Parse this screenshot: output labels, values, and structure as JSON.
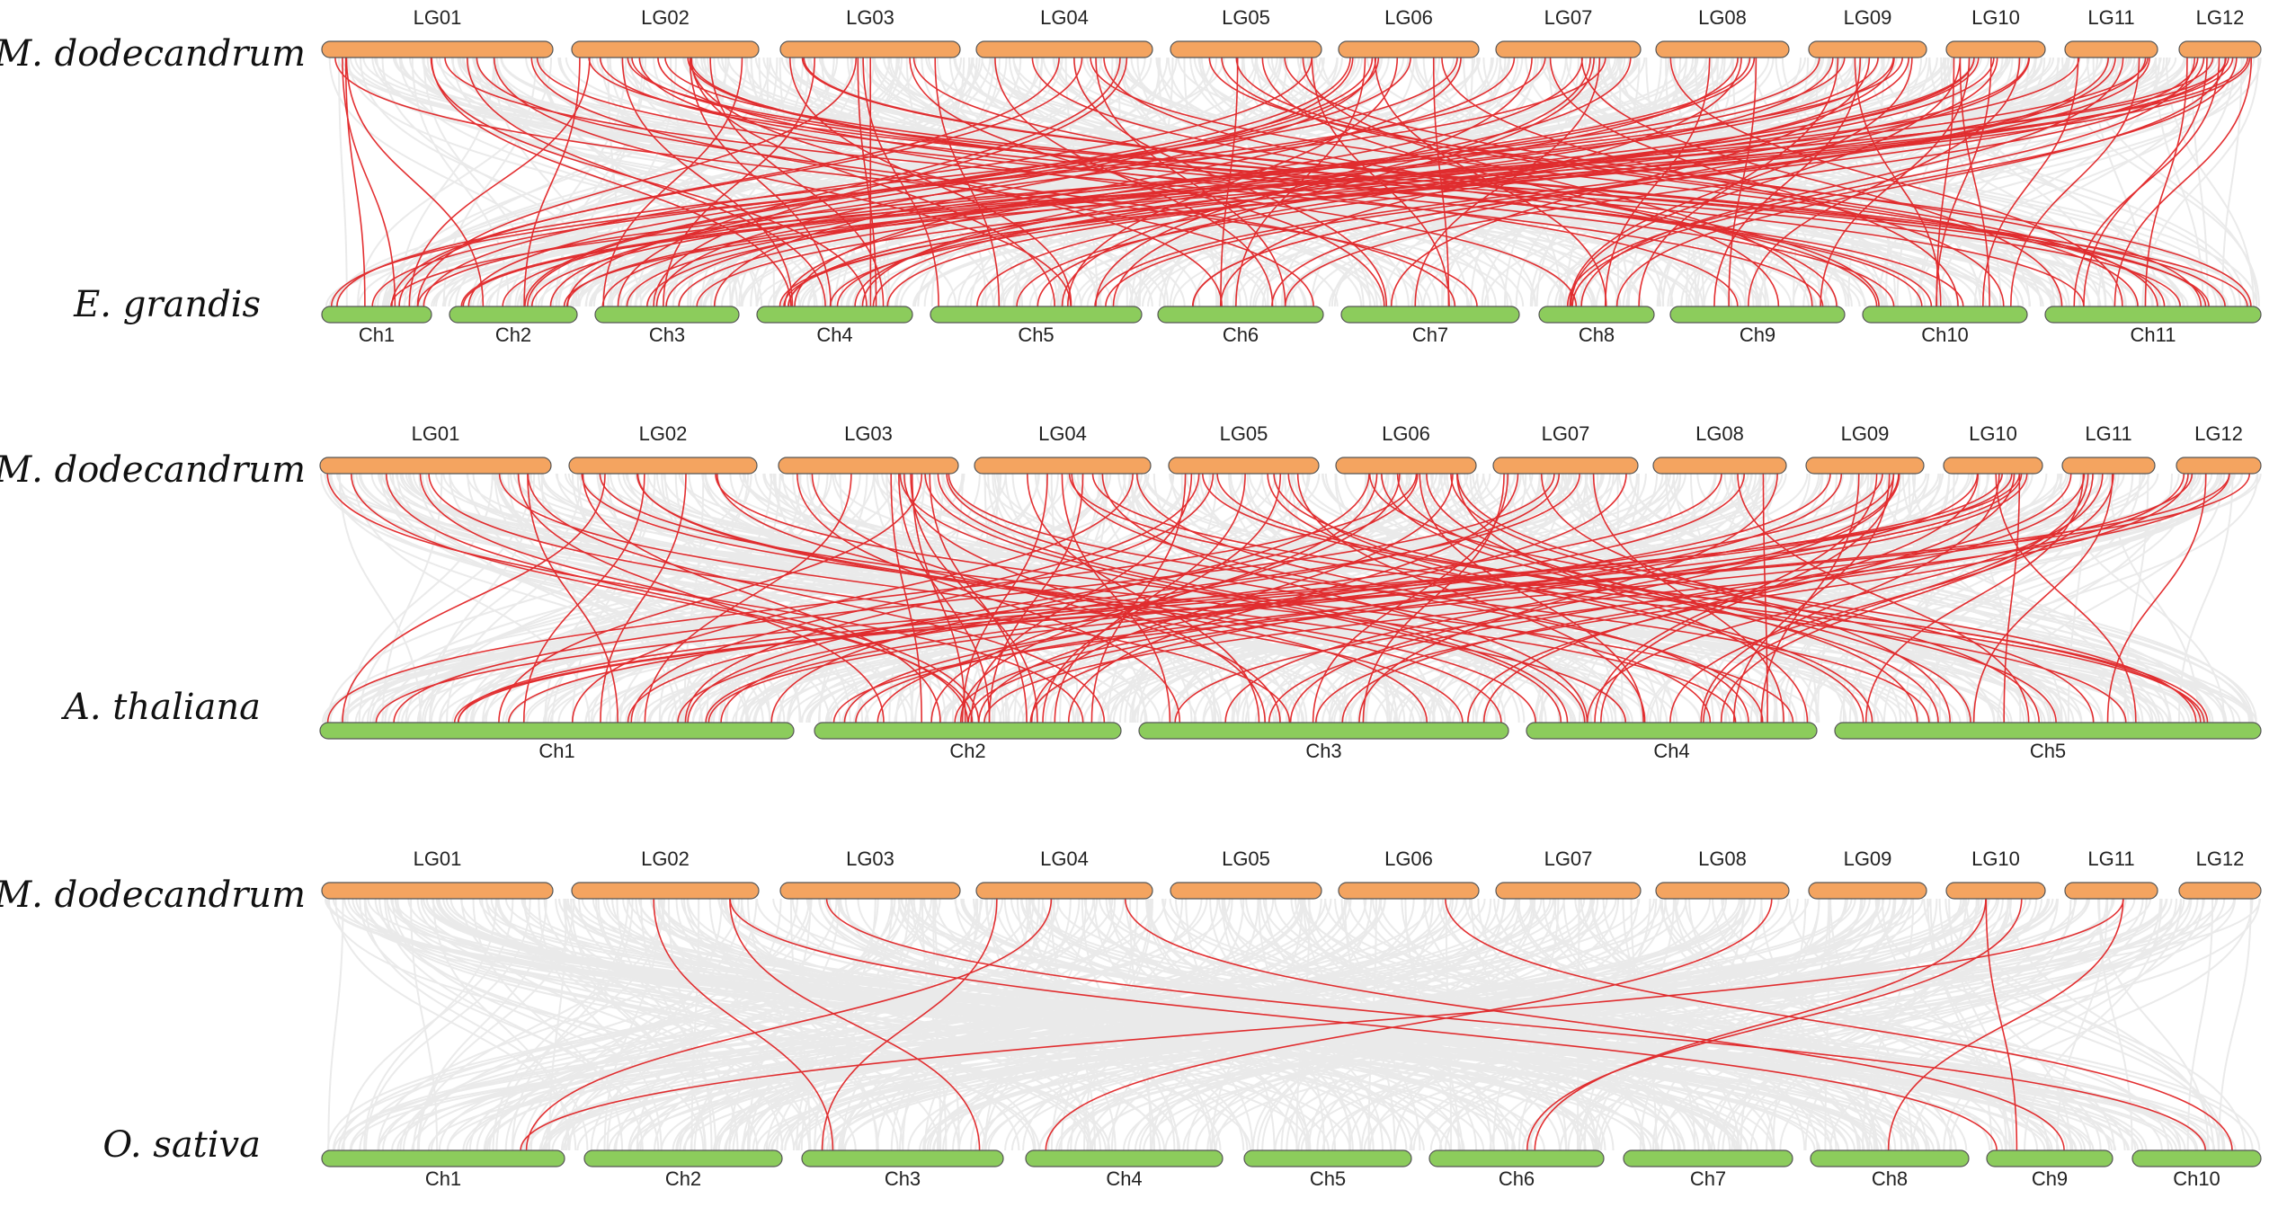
{
  "colors": {
    "reference_bar": "#f4a460",
    "target_bar": "#8ccc5c",
    "bar_outline": "#555555",
    "background_link": "#e4e4e4",
    "highlight_link": "#e0191b"
  },
  "panels": [
    {
      "id": "eucalyptus",
      "reference_species": "M. dodecandrum",
      "target_species": "E. grandis",
      "reference_chromosomes": [
        "LG01",
        "LG02",
        "LG03",
        "LG04",
        "LG05",
        "LG06",
        "LG07",
        "LG08",
        "LG09",
        "LG10",
        "LG11",
        "LG12"
      ],
      "target_chromosomes": [
        "Ch1",
        "Ch2",
        "Ch3",
        "Ch4",
        "Ch5",
        "Ch6",
        "Ch7",
        "Ch8",
        "Ch9",
        "Ch10",
        "Ch11"
      ],
      "highlight_link_count": 140
    },
    {
      "id": "arabidopsis",
      "reference_species": "M. dodecandrum",
      "target_species": "A. thaliana",
      "reference_chromosomes": [
        "LG01",
        "LG02",
        "LG03",
        "LG04",
        "LG05",
        "LG06",
        "LG07",
        "LG08",
        "LG09",
        "LG10",
        "LG11",
        "LG12"
      ],
      "target_chromosomes": [
        "Ch1",
        "Ch2",
        "Ch3",
        "Ch4",
        "Ch5"
      ],
      "highlight_link_count": 120
    },
    {
      "id": "rice",
      "reference_species": "M. dodecandrum",
      "target_species": "O. sativa",
      "reference_chromosomes": [
        "LG01",
        "LG02",
        "LG03",
        "LG04",
        "LG05",
        "LG06",
        "LG07",
        "LG08",
        "LG09",
        "LG10",
        "LG11",
        "LG12"
      ],
      "target_chromosomes": [
        "Ch1",
        "Ch2",
        "Ch3",
        "Ch4",
        "Ch5",
        "Ch6",
        "Ch7",
        "Ch8",
        "Ch9",
        "Ch10"
      ],
      "highlight_link_count": 14
    }
  ]
}
